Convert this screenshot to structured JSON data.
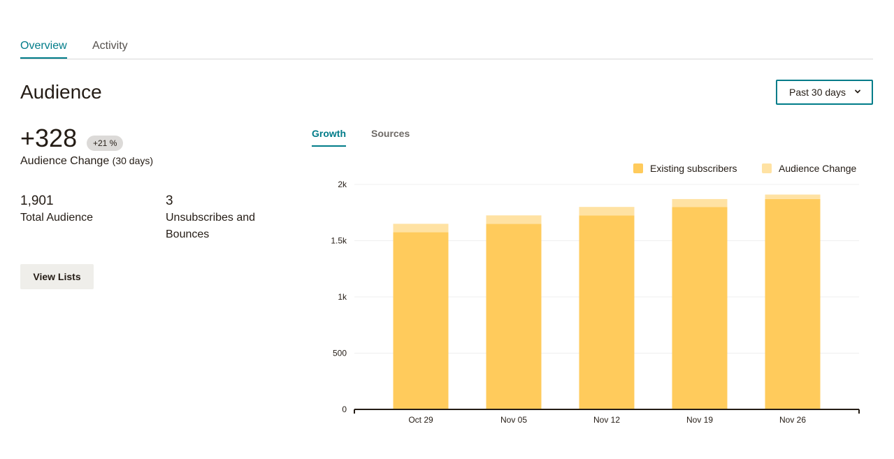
{
  "tabs": [
    {
      "label": "Overview",
      "active": true
    },
    {
      "label": "Activity",
      "active": false
    }
  ],
  "page_title": "Audience",
  "range_select": {
    "value": "Past 30 days"
  },
  "summary": {
    "change_value": "+328",
    "change_badge": "+21 %",
    "change_label": "Audience Change",
    "change_period": "(30 days)",
    "total_value": "1,901",
    "total_label": "Total Audience",
    "unsub_value": "3",
    "unsub_label_line1": "Unsubscribes and",
    "unsub_label_line2": "Bounces"
  },
  "view_lists_button": "View Lists",
  "chart_tabs": [
    {
      "label": "Growth",
      "active": true
    },
    {
      "label": "Sources",
      "active": false
    }
  ],
  "colors": {
    "accent": "#007c89",
    "existing": "#ffcb5c",
    "change": "#ffe2a3"
  },
  "chart_data": {
    "type": "bar",
    "stacked": true,
    "categories": [
      "Oct 29",
      "Nov 05",
      "Nov 12",
      "Nov 19",
      "Nov 26"
    ],
    "series": [
      {
        "name": "Existing subscribers",
        "values": [
          1575,
          1650,
          1725,
          1800,
          1870
        ],
        "color": "#ffcb5c"
      },
      {
        "name": "Audience Change",
        "values": [
          75,
          75,
          75,
          70,
          40
        ],
        "color": "#ffe2a3"
      }
    ],
    "yticks": [
      0,
      500,
      1000,
      1500,
      2000
    ],
    "ytick_labels": [
      "0",
      "500",
      "1k",
      "1.5k",
      "2k"
    ],
    "ylim": [
      0,
      2000
    ],
    "legend": "top-right",
    "grid": true
  }
}
